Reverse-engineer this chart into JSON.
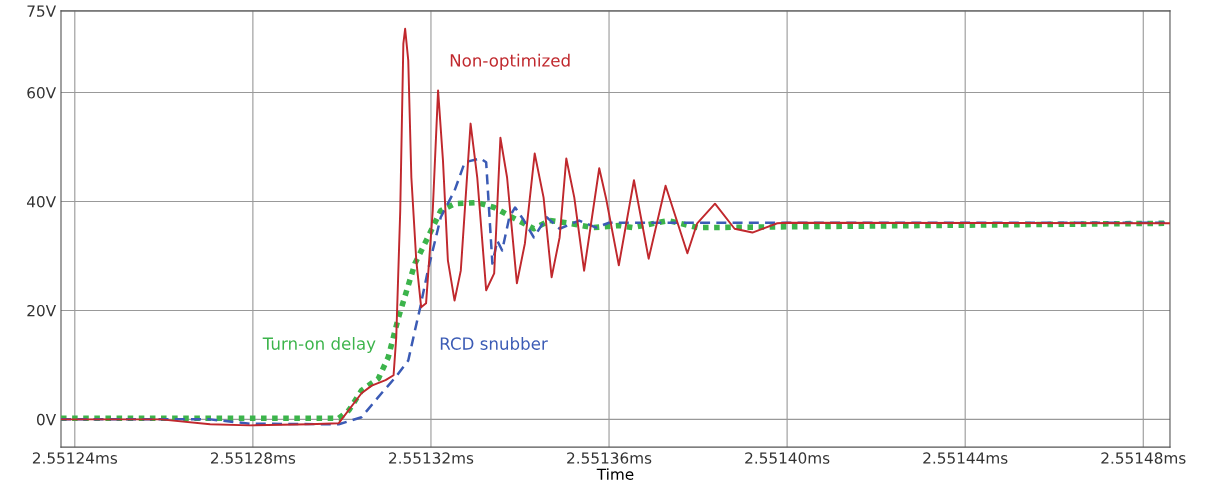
{
  "chart_data": {
    "type": "line",
    "xlabel": "Time",
    "xlim": [
      2.5512369,
      2.551486
    ],
    "ylim": [
      -5.1,
      75
    ],
    "xticks": [
      {
        "value": 2.55124,
        "label": "2.55124ms"
      },
      {
        "value": 2.55128,
        "label": "2.55128ms"
      },
      {
        "value": 2.55132,
        "label": "2.55132ms"
      },
      {
        "value": 2.55136,
        "label": "2.55136ms"
      },
      {
        "value": 2.5514,
        "label": "2.55140ms"
      },
      {
        "value": 2.55144,
        "label": "2.55144ms"
      },
      {
        "value": 2.55148,
        "label": "2.55148ms"
      }
    ],
    "yticks": [
      {
        "value": 0,
        "label": "0V"
      },
      {
        "value": 20,
        "label": "20V"
      },
      {
        "value": 40,
        "label": "40V"
      },
      {
        "value": 60,
        "label": "60V"
      },
      {
        "value": 75,
        "label": "75V"
      }
    ],
    "grid": true,
    "legend": false,
    "series": [
      {
        "name": "Non-optimized",
        "color": "#c0282d",
        "line_style": "solid",
        "x": [
          2.5512369,
          2.5512593,
          2.5512704,
          2.5512793,
          2.5512927,
          2.5512993,
          2.5513044,
          2.5513067,
          2.5513098,
          2.5513116,
          2.5513122,
          2.5513131,
          2.5513138,
          2.5513142,
          2.5513149,
          2.5513156,
          2.5513167,
          2.5513178,
          2.5513189,
          2.5513204,
          2.5513216,
          2.5513227,
          2.5513238,
          2.5513253,
          2.5513267,
          2.5513289,
          2.5513304,
          2.5513324,
          2.5513342,
          2.5513356,
          2.5513371,
          2.5513393,
          2.5513411,
          2.5513433,
          2.5513453,
          2.5513471,
          2.5513489,
          2.5513504,
          2.5513522,
          2.5513544,
          2.5513578,
          2.5513593,
          2.5513622,
          2.5513656,
          2.5513689,
          2.5513727,
          2.5513776,
          2.5513798,
          2.5513838,
          2.5513882,
          2.5513922,
          2.5513978,
          2.5514,
          2.551486
        ],
        "values": [
          0,
          0,
          -0.9,
          -1.1,
          -0.9,
          -0.7,
          4.8,
          6.2,
          7.2,
          8.1,
          15,
          38.3,
          69,
          71.7,
          65.9,
          44.4,
          29.2,
          20.6,
          21.3,
          38.3,
          60.4,
          47.5,
          29.2,
          21.8,
          27.3,
          54.3,
          44.4,
          23.7,
          26.8,
          51.7,
          44.4,
          25,
          32.3,
          48.8,
          40.7,
          26.1,
          33.4,
          47.9,
          40.7,
          27.3,
          46.1,
          40.7,
          28.3,
          43.9,
          29.5,
          42.9,
          30.5,
          36,
          39.6,
          35,
          34.3,
          36,
          36.1,
          36
        ]
      },
      {
        "name": "RCD snubber",
        "color": "#3b5bb5",
        "line_style": "dashed",
        "x": [
          2.5512369,
          2.5512704,
          2.5512793,
          2.5512993,
          2.5513044,
          2.5513089,
          2.551312,
          2.5513149,
          2.5513164,
          2.5513176,
          2.5513193,
          2.5513222,
          2.5513253,
          2.5513276,
          2.5513311,
          2.5513324,
          2.5513333,
          2.5513338,
          2.5513349,
          2.551336,
          2.5513376,
          2.5513389,
          2.5513409,
          2.5513431,
          2.551346,
          2.5513489,
          2.5513533,
          2.5513571,
          2.55136,
          2.551486
        ],
        "values": [
          0,
          0,
          -0.8,
          -0.9,
          0.4,
          4.8,
          7.7,
          10.8,
          16.3,
          20.6,
          27.3,
          37.1,
          42,
          47.2,
          47.9,
          47.2,
          35.2,
          28.6,
          32.8,
          31,
          37.1,
          38.9,
          36.5,
          33.4,
          37.1,
          35,
          36.5,
          35.2,
          36.1,
          36.1
        ]
      },
      {
        "name": "Turn-on delay",
        "color": "#3cb44b",
        "line_style": "dotted",
        "x": [
          2.5512369,
          2.5512993,
          2.5513016,
          2.5513044,
          2.5513082,
          2.5513104,
          2.5513127,
          2.5513164,
          2.5513193,
          2.5513222,
          2.5513253,
          2.5513304,
          2.5513342,
          2.5513387,
          2.5513431,
          2.5513467,
          2.5513511,
          2.5513564,
          2.5513622,
          2.5513653,
          2.5513733,
          2.55138,
          2.551486
        ],
        "values": [
          0.2,
          0.2,
          1.7,
          5.3,
          7.5,
          11.4,
          18.7,
          28.6,
          33.4,
          38.3,
          39.6,
          39.8,
          38.9,
          36.9,
          35,
          36.5,
          36,
          35.2,
          35.6,
          35.2,
          36.5,
          35.2,
          36
        ]
      }
    ]
  }
}
